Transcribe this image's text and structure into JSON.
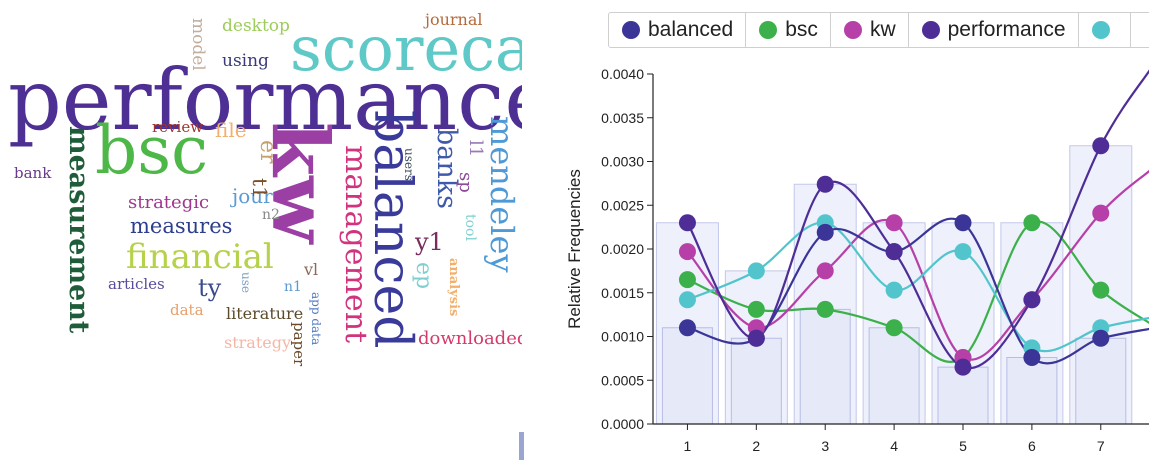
{
  "word_cloud": {
    "words": [
      {
        "text": "performance",
        "color": "#4e2f93"
      },
      {
        "text": "scoreca",
        "color": "#5ec9c7"
      },
      {
        "text": "bsc",
        "color": "#4db848"
      },
      {
        "text": "kw",
        "color": "#9b3fa4"
      },
      {
        "text": "balanced",
        "color": "#3a3a9a"
      },
      {
        "text": "management",
        "color": "#d2337e"
      },
      {
        "text": "mendeley",
        "color": "#4f9ad6"
      },
      {
        "text": "measurement",
        "color": "#1f5c3a"
      },
      {
        "text": "financial",
        "color": "#b5d24a"
      },
      {
        "text": "banks",
        "color": "#3f5aa8"
      },
      {
        "text": "measures",
        "color": "#2c3e8c"
      },
      {
        "text": "strategic",
        "color": "#a2358f"
      },
      {
        "text": "jour",
        "color": "#5a9bd4"
      },
      {
        "text": "y1",
        "color": "#7a2c5e"
      },
      {
        "text": "ty",
        "color": "#3a4a8c"
      },
      {
        "text": "ep",
        "color": "#7dcfd0"
      },
      {
        "text": "er",
        "color": "#c7a06a"
      },
      {
        "text": "t1",
        "color": "#7a4f2a"
      },
      {
        "text": "file",
        "color": "#f2b06c"
      },
      {
        "text": "review",
        "color": "#a0352f"
      },
      {
        "text": "using",
        "color": "#3a3a7a"
      },
      {
        "text": "desktop",
        "color": "#9ccc5a"
      },
      {
        "text": "model",
        "color": "#c2ac9a"
      },
      {
        "text": "journal",
        "color": "#b56a3a"
      },
      {
        "text": "bank",
        "color": "#6a3a8a"
      },
      {
        "text": "articles",
        "color": "#5a4a9a"
      },
      {
        "text": "data",
        "color": "#e8a06a"
      },
      {
        "text": "literature",
        "color": "#5a4a2a"
      },
      {
        "text": "strategy",
        "color": "#f7b5a5"
      },
      {
        "text": "paper",
        "color": "#6a4a2a"
      },
      {
        "text": "downloaded",
        "color": "#d63a6a"
      },
      {
        "text": "analysis",
        "color": "#f2b06c"
      },
      {
        "text": "tool",
        "color": "#7dcfd0"
      },
      {
        "text": "n1",
        "color": "#5a9bd4"
      },
      {
        "text": "n2",
        "color": "#8a8a8a"
      },
      {
        "text": "vl",
        "color": "#8a6a5a"
      },
      {
        "text": "use",
        "color": "#7aa0c4"
      },
      {
        "text": "app data",
        "color": "#4f7ac4"
      },
      {
        "text": "users",
        "color": "#3a4a5a"
      },
      {
        "text": "sp",
        "color": "#8a4a9a"
      },
      {
        "text": "l1",
        "color": "#9a7ab4"
      }
    ]
  },
  "legend": {
    "items": [
      {
        "label": "balanced",
        "color": "#3b3597"
      },
      {
        "label": "bsc",
        "color": "#3cb04a"
      },
      {
        "label": "kw",
        "color": "#b640a8"
      },
      {
        "label": "performance",
        "color": "#4e2e96"
      },
      {
        "label": "",
        "color": "#52c5cc"
      }
    ]
  },
  "chart_data": {
    "type": "line",
    "xlabel": "",
    "ylabel": "Relative Frequencies",
    "x": [
      1,
      2,
      3,
      4,
      5,
      6,
      7
    ],
    "xlim_visible": [
      0.5,
      7.7
    ],
    "ylim": [
      0,
      0.004
    ],
    "yticks": [
      "0.0000",
      "0.0005",
      "0.0010",
      "0.0015",
      "0.0020",
      "0.0025",
      "0.0030",
      "0.0035",
      "0.0040"
    ],
    "xticks": [
      "1",
      "2",
      "3",
      "4",
      "5",
      "6",
      "7"
    ],
    "smooth": true,
    "bars_background": true,
    "series": [
      {
        "name": "bsc",
        "color": "#3cb04a",
        "values": [
          0.00165,
          0.00131,
          0.00131,
          0.0011,
          0.00076,
          0.0023,
          0.00153
        ]
      },
      {
        "name": "kw",
        "color": "#b640a8",
        "values": [
          0.00197,
          0.0011,
          0.00175,
          0.0023,
          0.00076,
          0.00142,
          0.00241
        ]
      },
      {
        "name": "",
        "color": "#52c5cc",
        "values": [
          0.00142,
          0.00175,
          0.0023,
          0.00153,
          0.00197,
          0.00087,
          0.0011
        ]
      },
      {
        "name": "balanced",
        "color": "#3b3597",
        "values": [
          0.0011,
          0.00098,
          0.00219,
          0.00197,
          0.0023,
          0.00076,
          0.00098
        ]
      },
      {
        "name": "performance",
        "color": "#4e2e96",
        "values": [
          0.0023,
          0.00098,
          0.00274,
          0.00197,
          0.00065,
          0.00142,
          0.00318
        ]
      }
    ]
  }
}
